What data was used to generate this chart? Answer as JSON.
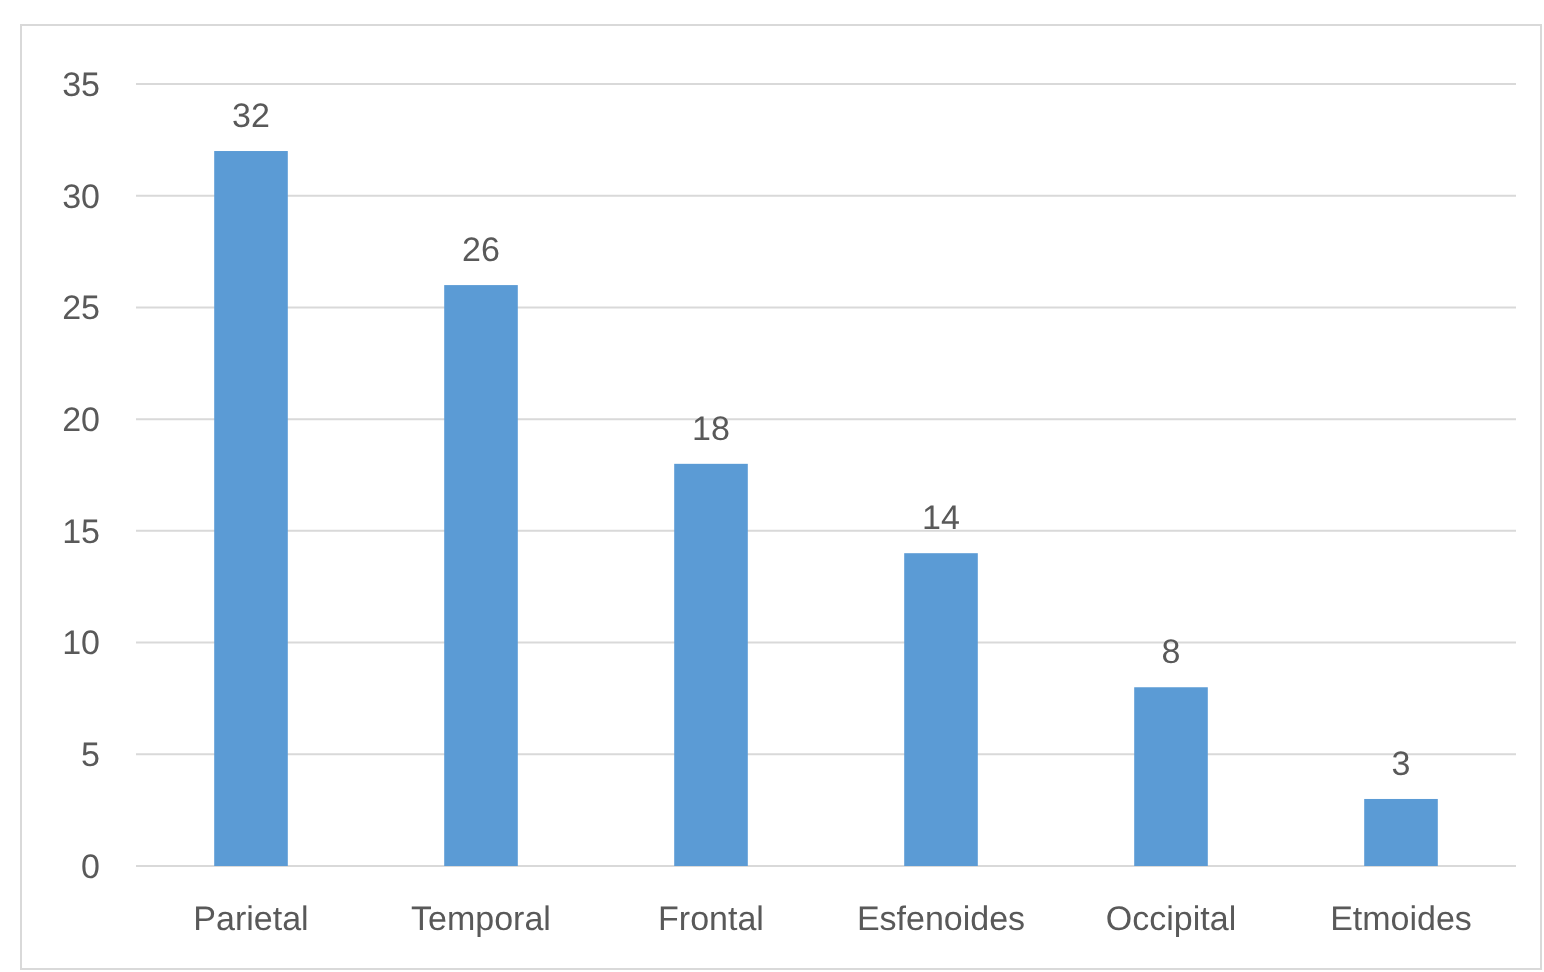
{
  "chart_data": {
    "type": "bar",
    "categories": [
      "Parietal",
      "Temporal",
      "Frontal",
      "Esfenoides",
      "Occipital",
      "Etmoides"
    ],
    "values": [
      32,
      26,
      18,
      14,
      8,
      3
    ],
    "color": "#5b9bd5",
    "ylim": [
      0,
      35
    ],
    "yticks": [
      0,
      5,
      10,
      15,
      20,
      25,
      30,
      35
    ],
    "grid": "y",
    "data_labels": true
  }
}
